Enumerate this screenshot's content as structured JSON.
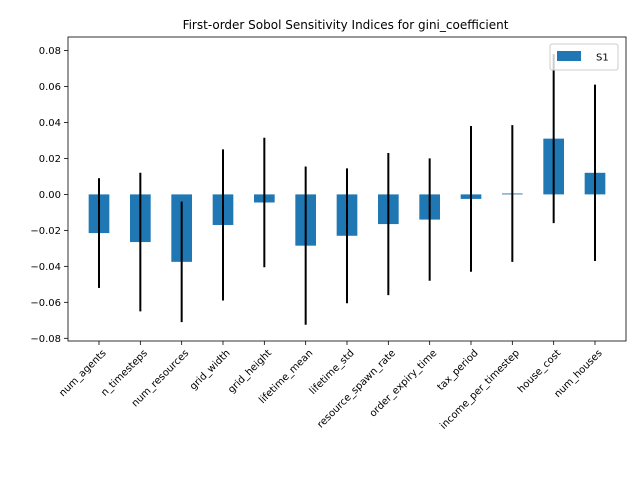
{
  "chart_data": {
    "type": "bar",
    "title": "First-order Sobol Sensitivity Indices for gini_coefficient",
    "xlabel": "",
    "ylabel": "",
    "categories": [
      "num_agents",
      "n_timesteps",
      "num_resources",
      "grid_width",
      "grid_height",
      "lifetime_mean",
      "lifetime_std",
      "resource_spawn_rate",
      "order_expiry_time",
      "tax_period",
      "income_per_timestep",
      "house_cost",
      "num_houses"
    ],
    "series": [
      {
        "name": "S1",
        "values": [
          -0.0215,
          -0.0265,
          -0.0375,
          -0.017,
          -0.0045,
          -0.0285,
          -0.023,
          -0.0165,
          -0.014,
          -0.0025,
          0.0005,
          0.031,
          0.012
        ],
        "error": [
          0.0305,
          0.0385,
          0.0335,
          0.042,
          0.036,
          0.044,
          0.0375,
          0.0395,
          0.034,
          0.0405,
          0.038,
          0.047,
          0.049
        ]
      }
    ],
    "ylim": [
      -0.0815,
      0.0875
    ],
    "yticks": [
      -0.08,
      -0.06,
      -0.04,
      -0.02,
      0.0,
      0.02,
      0.04,
      0.06,
      0.08
    ],
    "ytick_labels": [
      "−0.08",
      "−0.06",
      "−0.04",
      "−0.02",
      "0.00",
      "0.02",
      "0.04",
      "0.06",
      "0.08"
    ],
    "grid": false,
    "legend": {
      "position": "top-right",
      "entries": [
        "S1"
      ]
    },
    "colors": {
      "bar": "#1f77b4",
      "error_bar": "#000000",
      "axes": "#000000"
    }
  }
}
